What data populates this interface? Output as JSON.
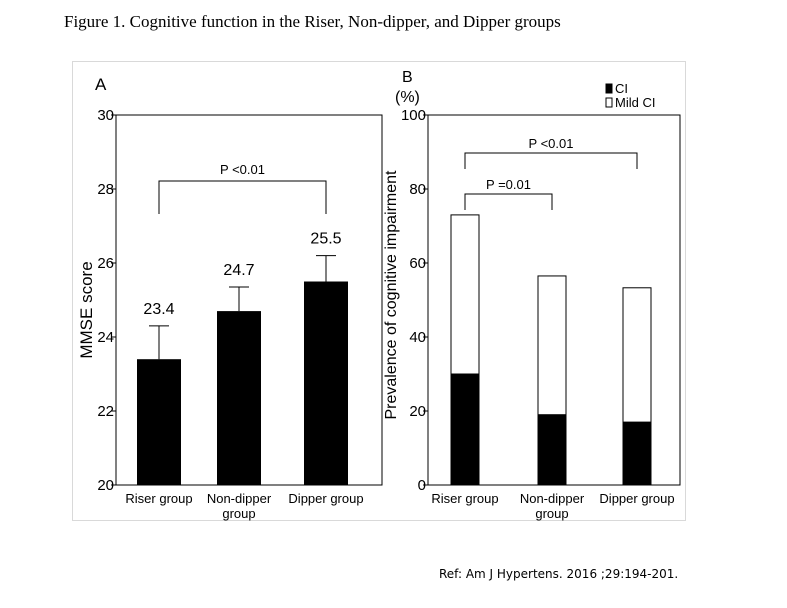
{
  "figure": {
    "title": "Figure 1. Cognitive function in the Riser, Non-dipper, and Dipper groups",
    "reference": "Ref: Am J Hypertens. 2016 ;29:194-201."
  },
  "chart_data": [
    {
      "type": "bar",
      "panel": "A",
      "ylabel": "MMSE score",
      "ylim": [
        20,
        30
      ],
      "yticks": [
        20,
        22,
        24,
        26,
        28,
        30
      ],
      "categories": [
        "Riser group",
        "Non-dipper group",
        "Dipper group"
      ],
      "category_lines": [
        [
          "Riser group"
        ],
        [
          "Non-dipper",
          "group"
        ],
        [
          "Dipper group"
        ]
      ],
      "values": [
        23.4,
        24.7,
        25.5
      ],
      "value_labels": [
        "23.4",
        "24.7",
        "25.5"
      ],
      "error_upper": [
        24.3,
        25.35,
        26.2
      ],
      "bar_color": "#000000",
      "annotation": {
        "text": "P <0.01",
        "from": 0,
        "to": 2
      }
    },
    {
      "type": "bar",
      "stacked": true,
      "panel": "B",
      "unit": "(%)",
      "ylabel": "Prevalence of cognitive impairment",
      "ylim": [
        0,
        100
      ],
      "yticks": [
        0,
        20,
        40,
        60,
        80,
        100
      ],
      "categories": [
        "Riser group",
        "Non-dipper group",
        "Dipper group"
      ],
      "category_lines": [
        [
          "Riser group"
        ],
        [
          "Non-dipper",
          "group"
        ],
        [
          "Dipper group"
        ]
      ],
      "series": [
        {
          "name": "CI",
          "color": "#000000",
          "values": [
            30,
            19,
            17
          ]
        },
        {
          "name": "Mild CI",
          "color": "#ffffff",
          "values": [
            43,
            37.5,
            36.3
          ]
        }
      ],
      "legend": "top-right",
      "annotations": [
        {
          "text": "P =0.01",
          "from": 0,
          "to": 1
        },
        {
          "text": "P <0.01",
          "from": 0,
          "to": 2
        }
      ]
    }
  ]
}
